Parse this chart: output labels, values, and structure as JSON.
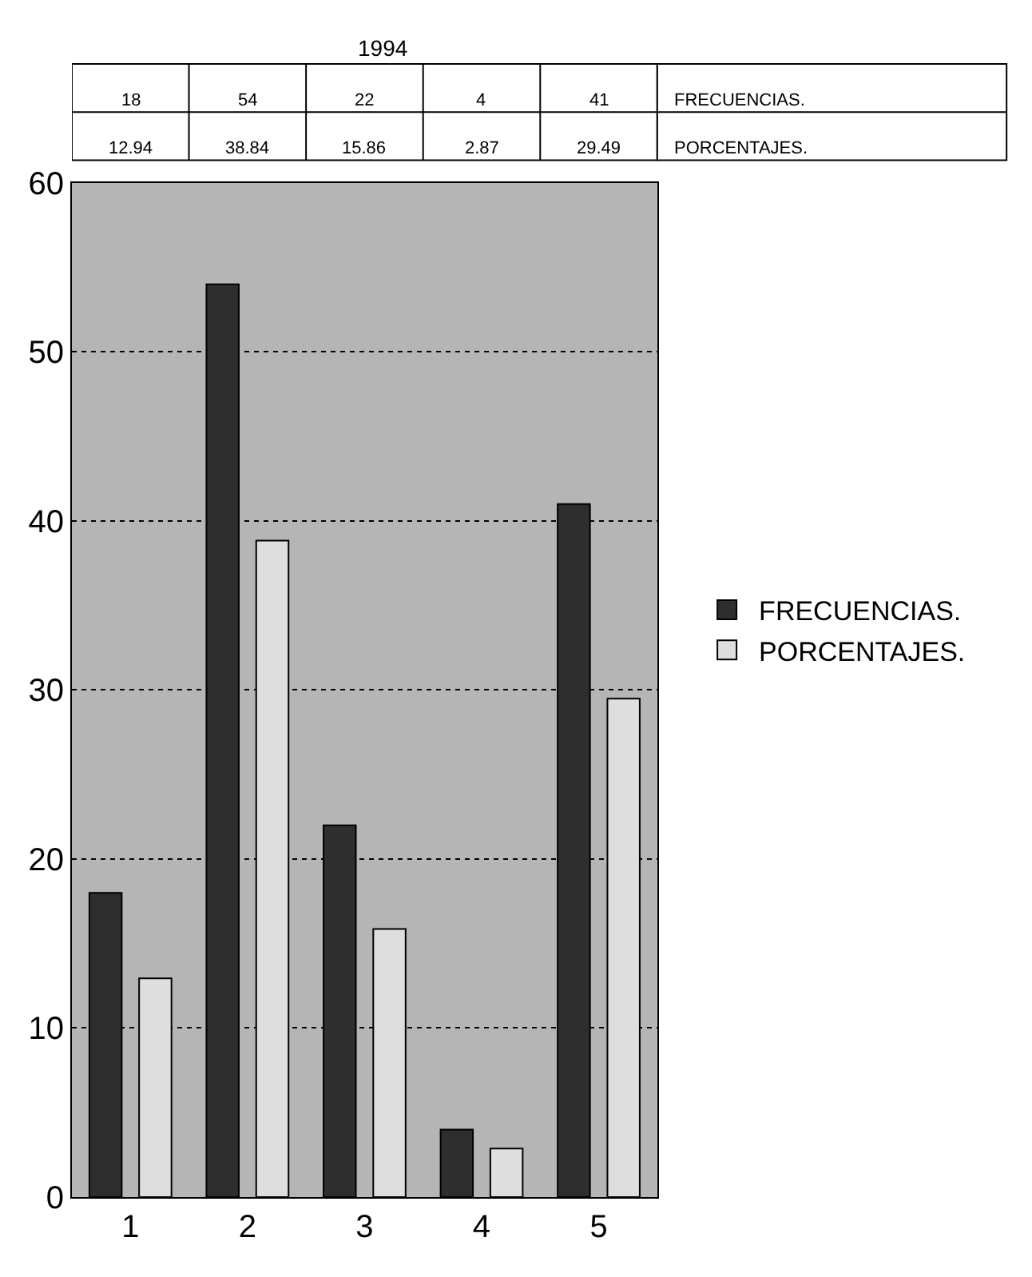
{
  "chart_data": {
    "type": "bar",
    "title": "1994",
    "categories": [
      "1",
      "2",
      "3",
      "4",
      "5"
    ],
    "series": [
      {
        "name": "FRECUENCIAS.",
        "color": "#2e2e2e",
        "values": [
          18,
          54,
          22,
          4,
          41
        ]
      },
      {
        "name": "PORCENTAJES.",
        "color": "#dedede",
        "values": [
          12.94,
          38.84,
          15.86,
          2.87,
          29.49
        ]
      }
    ],
    "ylim": [
      0,
      60
    ],
    "yticks": [
      0,
      10,
      20,
      30,
      40,
      50,
      60
    ],
    "grid": "y",
    "legend": "right",
    "data_labels": true
  }
}
